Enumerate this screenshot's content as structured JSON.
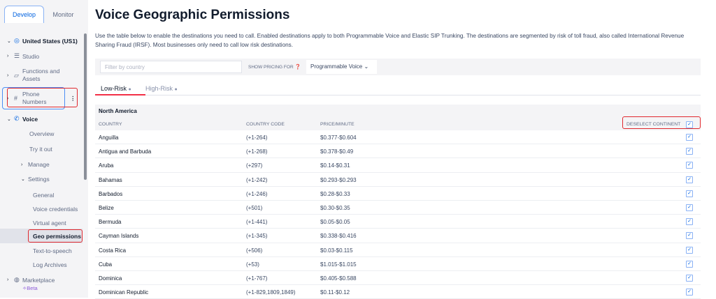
{
  "sidebar": {
    "tabs": [
      "Develop",
      "Monitor"
    ],
    "region": "United States (US1)",
    "items": [
      "Studio",
      "Functions and Assets",
      "Phone Numbers",
      "Voice"
    ],
    "voice_items": [
      "Overview",
      "Try it out",
      "Manage",
      "Settings"
    ],
    "settings_items": [
      "General",
      "Voice credentials",
      "Virtual agent",
      "Geo permissions",
      "Text-to-speech",
      "Log Archives"
    ],
    "marketplace": "Marketplace",
    "beta": "Beta"
  },
  "main": {
    "title": "Voice Geographic Permissions",
    "description": "Use the table below to enable the destinations you need to call. Enabled destinations apply to both Programmable Voice and Elastic SIP Trunking. The destinations are segmented by risk of toll fraud, also called International Revenue Sharing Fraud (IRSF). Most businesses only need to call low risk destinations.",
    "filter_placeholder": "Filter by country",
    "show_pricing_for": "SHOW PRICING FOR",
    "pricing_select": "Programmable Voice",
    "risk_tabs": [
      "Low-Risk",
      "High-Risk"
    ],
    "continent": "North America",
    "headers": {
      "country": "COUNTRY",
      "code": "COUNTRY CODE",
      "price": "PRICE/MINUTE",
      "deselect": "DESELECT CONTINENT"
    },
    "rows": [
      {
        "country": "Anguilla",
        "code": "(+1-264)",
        "price": "$0.377-$0.604",
        "enabled": true
      },
      {
        "country": "Antigua and Barbuda",
        "code": "(+1-268)",
        "price": "$0.378-$0.49",
        "enabled": true
      },
      {
        "country": "Aruba",
        "code": "(+297)",
        "price": "$0.14-$0.31",
        "enabled": true
      },
      {
        "country": "Bahamas",
        "code": "(+1-242)",
        "price": "$0.293-$0.293",
        "enabled": true
      },
      {
        "country": "Barbados",
        "code": "(+1-246)",
        "price": "$0.28-$0.33",
        "enabled": true
      },
      {
        "country": "Belize",
        "code": "(+501)",
        "price": "$0.30-$0.35",
        "enabled": true
      },
      {
        "country": "Bermuda",
        "code": "(+1-441)",
        "price": "$0.05-$0.05",
        "enabled": true
      },
      {
        "country": "Cayman Islands",
        "code": "(+1-345)",
        "price": "$0.338-$0.416",
        "enabled": true
      },
      {
        "country": "Costa Rica",
        "code": "(+506)",
        "price": "$0.03-$0.115",
        "enabled": true
      },
      {
        "country": "Cuba",
        "code": "(+53)",
        "price": "$1.015-$1.015",
        "enabled": true
      },
      {
        "country": "Dominica",
        "code": "(+1-767)",
        "price": "$0.405-$0.588",
        "enabled": true
      },
      {
        "country": "Dominican Republic",
        "code": "(+1-829,1809,1849)",
        "price": "$0.11-$0.12",
        "enabled": true
      }
    ]
  },
  "colors": {
    "accent": "#0263e0",
    "tab_underline": "#f22f46",
    "highlight": "#e0282e"
  }
}
